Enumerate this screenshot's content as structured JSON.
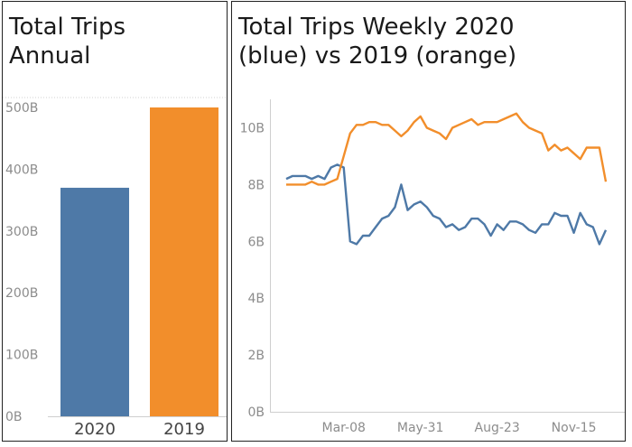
{
  "colors": {
    "blue": "#4e79a7",
    "orange": "#f28e2b",
    "axis_text": "#8c8c8c",
    "grid": "#e6e6e6"
  },
  "chart_data": [
    {
      "type": "bar",
      "title_lines": [
        "Total Trips",
        "Annual"
      ],
      "categories": [
        "2020",
        "2019"
      ],
      "values": [
        370,
        500
      ],
      "value_unit": "B",
      "ylim": [
        0,
        500
      ],
      "yticks": [
        "500B",
        "400B",
        "300B",
        "200B",
        "100B",
        "0B"
      ],
      "ytick_values": [
        500,
        400,
        300,
        200,
        100,
        0
      ],
      "bar_colors": [
        "#4e79a7",
        "#f28e2b"
      ],
      "grid": false
    },
    {
      "type": "line",
      "title_lines": [
        "Total Trips Weekly 2020",
        "(blue) vs 2019 (orange)"
      ],
      "ylim": [
        0,
        11
      ],
      "yticks": [
        "10B",
        "8B",
        "6B",
        "4B",
        "2B",
        "0B"
      ],
      "ytick_values": [
        10,
        8,
        6,
        4,
        2,
        0
      ],
      "xticks": [
        "Mar-08",
        "May-31",
        "Aug-23",
        "Nov-15"
      ],
      "xtick_index": [
        9,
        21,
        33,
        45
      ],
      "x_count": 51,
      "grid": false,
      "series": [
        {
          "color": "#4e79a7",
          "values": [
            8.2,
            8.3,
            8.3,
            8.3,
            8.2,
            8.3,
            8.2,
            8.6,
            8.7,
            8.6,
            6.0,
            5.9,
            6.2,
            6.2,
            6.5,
            6.8,
            6.9,
            7.2,
            8.0,
            7.1,
            7.3,
            7.4,
            7.2,
            6.9,
            6.8,
            6.5,
            6.6,
            6.4,
            6.5,
            6.8,
            6.8,
            6.6,
            6.2,
            6.6,
            6.4,
            6.7,
            6.7,
            6.6,
            6.4,
            6.3,
            6.6,
            6.6,
            7.0,
            6.9,
            6.9,
            6.3,
            7.0,
            6.6,
            6.5,
            5.9,
            6.4
          ]
        },
        {
          "color": "#f28e2b",
          "values": [
            8.0,
            8.0,
            8.0,
            8.0,
            8.1,
            8.0,
            8.0,
            8.1,
            8.2,
            9.0,
            9.8,
            10.1,
            10.1,
            10.2,
            10.2,
            10.1,
            10.1,
            9.9,
            9.7,
            9.9,
            10.2,
            10.4,
            10.0,
            9.9,
            9.8,
            9.6,
            10.0,
            10.1,
            10.2,
            10.3,
            10.1,
            10.2,
            10.2,
            10.2,
            10.3,
            10.4,
            10.5,
            10.2,
            10.0,
            9.9,
            9.8,
            9.2,
            9.4,
            9.2,
            9.3,
            9.1,
            8.9,
            9.3,
            9.3,
            9.3,
            8.1
          ]
        }
      ]
    }
  ]
}
